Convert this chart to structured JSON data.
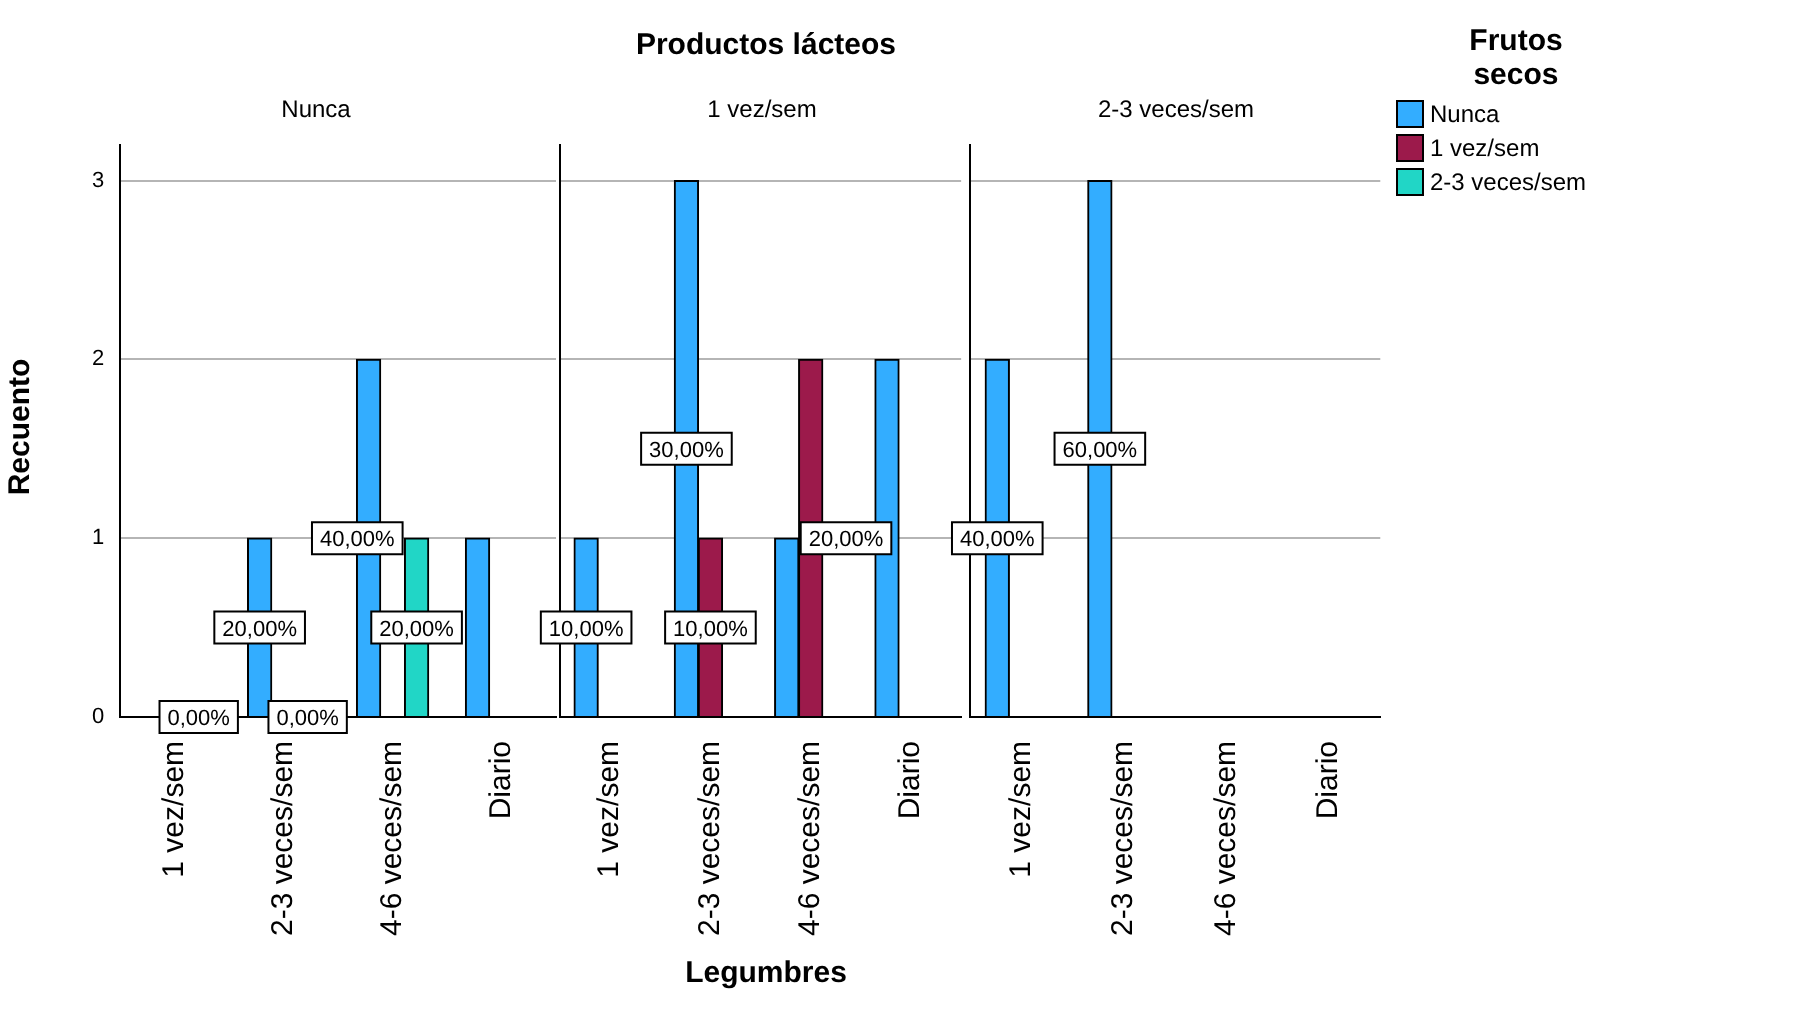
{
  "chart_data": [
    {
      "type": "bar",
      "subtitle": "Nunca",
      "ylabel": "Recuento",
      "categories": [
        "1 vez/sem",
        "2-3 veces/sem",
        "4-6 veces/sem",
        "Diario"
      ],
      "series": [
        {
          "color": "#33adff",
          "values": [
            null,
            1,
            2,
            1
          ]
        },
        {
          "color": "#9c1a4b",
          "values": [
            null,
            null,
            null,
            null
          ]
        },
        {
          "color": "#21d6c6",
          "values": [
            0,
            0,
            1,
            null
          ]
        }
      ],
      "annotations": [
        "0,00%",
        "20,00%",
        "0,00%",
        "40,00%",
        "20,00%"
      ],
      "ylim": [
        0,
        3.2
      ],
      "yticks": [
        0,
        1,
        2,
        3
      ],
      "grid": "y"
    },
    {
      "type": "bar",
      "title": "Productos lácteos",
      "subtitle": "1 vez/sem",
      "xlabel": "Legumbres",
      "categories": [
        "1 vez/sem",
        "2-3 veces/sem",
        "4-6 veces/sem",
        "Diario"
      ],
      "series": [
        {
          "color": "#33adff",
          "values": [
            1,
            3,
            1,
            2
          ]
        },
        {
          "color": "#9c1a4b",
          "values": [
            null,
            1,
            2,
            null
          ]
        },
        {
          "color": "#21d6c6",
          "values": [
            null,
            null,
            null,
            null
          ]
        }
      ],
      "annotations": [
        "10,00%",
        "30,00%",
        "10,00%",
        "20,00%"
      ],
      "ylim": [
        0,
        3.2
      ],
      "yticks": [
        0,
        1,
        2,
        3
      ],
      "grid": "y",
      "tick_labels": "x"
    },
    {
      "type": "bar",
      "subtitle": "2-3 veces/sem",
      "legend_title": "Frutos secos",
      "legend": "top right",
      "categories": [
        "1 vez/sem",
        "2-3 veces/sem",
        "4-6 veces/sem",
        "Diario"
      ],
      "series": [
        {
          "name": "Nunca",
          "color": "#33adff",
          "values": [
            2,
            3,
            null,
            null
          ]
        },
        {
          "name": "1 vez/sem",
          "color": "#9c1a4b",
          "values": [
            null,
            null,
            null,
            null
          ]
        },
        {
          "name": "2-3 veces/sem",
          "color": "#21d6c6",
          "values": [
            null,
            null,
            null,
            null
          ]
        }
      ],
      "annotations": [
        "40,00%",
        "60,00%"
      ],
      "ylim": [
        0,
        3.2
      ],
      "yticks": [
        0,
        1,
        2,
        3
      ],
      "grid": "y",
      "tick_labels": "x"
    }
  ]
}
